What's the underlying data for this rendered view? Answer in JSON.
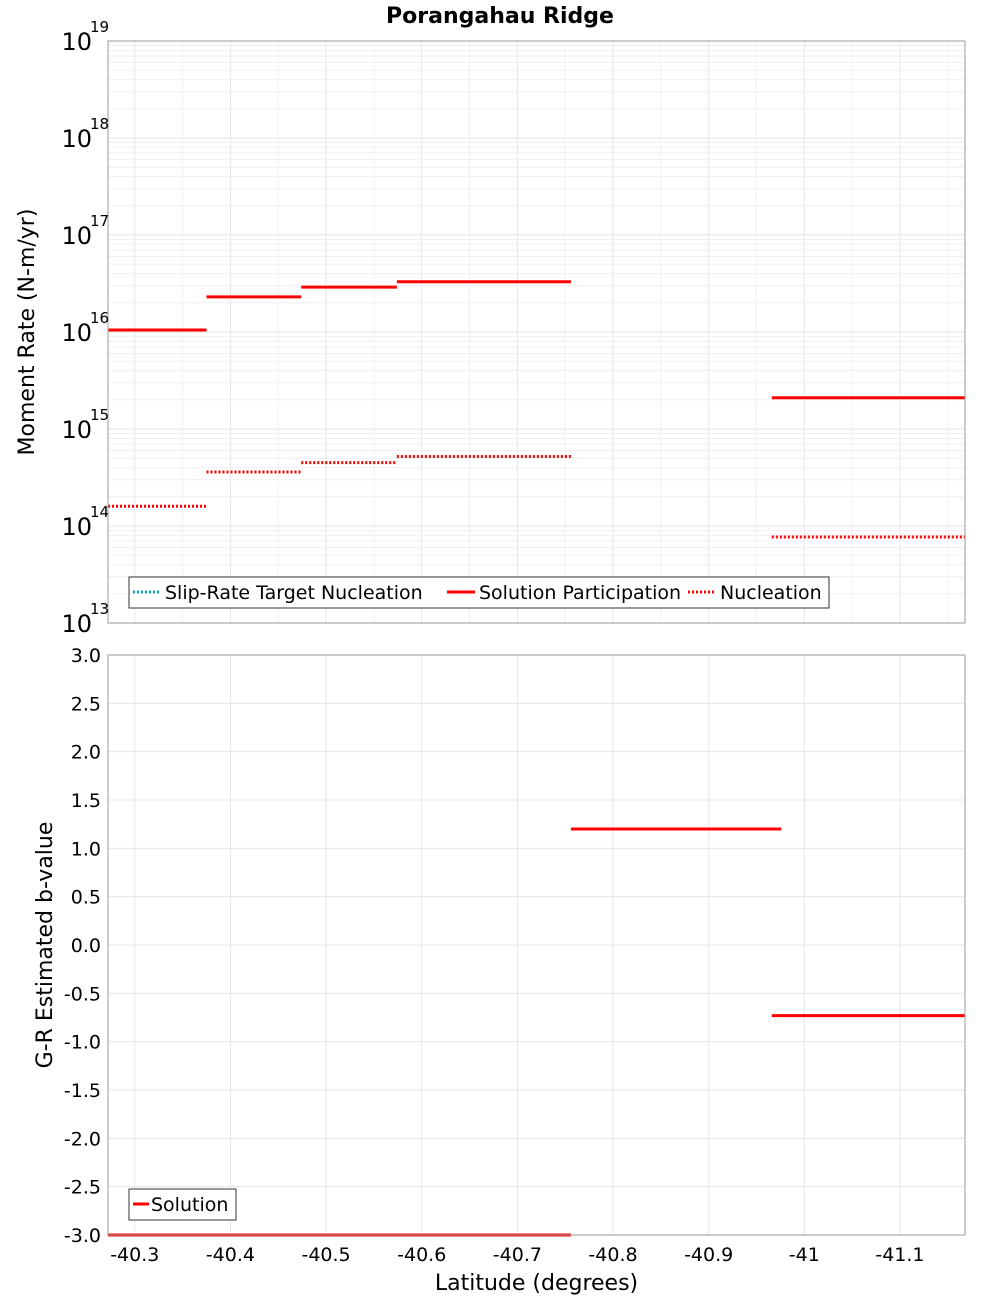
{
  "title": "Porangahau Ridge",
  "colors": {
    "solution": "#ff0000",
    "target": "#00a8c8",
    "grid": "#e6e6e6",
    "frame": "#9a9a9a"
  },
  "chart_data": [
    {
      "type": "line",
      "name": "moment-rate",
      "title": "Porangahau Ridge",
      "ylabel": "Moment Rate (N-m/yr)",
      "xlabel": "",
      "yscale": "log",
      "xlim": [
        -40.272,
        -41.168
      ],
      "ylim_exponent": [
        13,
        19
      ],
      "y_tick_exponents": [
        13,
        14,
        15,
        16,
        17,
        18,
        19
      ],
      "y_tick_base": "10",
      "legend": {
        "position": "bottom-left",
        "entries": [
          {
            "label": "Slip-Rate Target Nucleation",
            "style": "dotted",
            "color": "#00a8c8"
          },
          {
            "label": "Solution Participation",
            "style": "solid",
            "color": "#ff0000"
          },
          {
            "label": "Nucleation",
            "style": "dotted",
            "color": "#ff0000"
          }
        ]
      },
      "series": [
        {
          "name": "Solution Participation",
          "style": "solid",
          "segments": [
            {
              "x0": -40.272,
              "x1": -40.375,
              "y": 1.05e+16
            },
            {
              "x0": -40.375,
              "x1": -40.474,
              "y": 2.3e+16
            },
            {
              "x0": -40.474,
              "x1": -40.574,
              "y": 2.9e+16
            },
            {
              "x0": -40.574,
              "x1": -40.756,
              "y": 3.3e+16
            },
            {
              "x0": -40.966,
              "x1": -41.168,
              "y": 2100000000000000.0
            }
          ]
        },
        {
          "name": "Nucleation",
          "style": "dotted",
          "segments": [
            {
              "x0": -40.272,
              "x1": -40.375,
              "y": 160000000000000.0
            },
            {
              "x0": -40.375,
              "x1": -40.474,
              "y": 360000000000000.0
            },
            {
              "x0": -40.474,
              "x1": -40.574,
              "y": 450000000000000.0
            },
            {
              "x0": -40.574,
              "x1": -40.756,
              "y": 520000000000000.0
            },
            {
              "x0": -40.966,
              "x1": -41.168,
              "y": 77000000000000.0
            }
          ]
        }
      ]
    },
    {
      "type": "line",
      "name": "b-value",
      "ylabel": "G-R Estimated b-value",
      "xlabel": "Latitude (degrees)",
      "xlim": [
        -40.272,
        -41.168
      ],
      "ylim": [
        -3.0,
        3.0
      ],
      "y_ticks": [
        "-3.0",
        "-2.5",
        "-2.0",
        "-1.5",
        "-1.0",
        "-0.5",
        "0.0",
        "0.5",
        "1.0",
        "1.5",
        "2.0",
        "2.5",
        "3.0"
      ],
      "x_ticks": [
        "-40.3",
        "-40.4",
        "-40.5",
        "-40.6",
        "-40.7",
        "-40.8",
        "-40.9",
        "-41",
        "-41.1"
      ],
      "legend": {
        "position": "bottom-left",
        "entries": [
          {
            "label": "Solution",
            "style": "solid",
            "color": "#ff0000"
          }
        ]
      },
      "series": [
        {
          "name": "Solution",
          "style": "solid",
          "segments": [
            {
              "x0": -40.272,
              "x1": -40.756,
              "y": -3.0
            },
            {
              "x0": -40.756,
              "x1": -40.976,
              "y": 1.2
            },
            {
              "x0": -40.966,
              "x1": -41.168,
              "y": -0.73
            }
          ]
        }
      ]
    }
  ]
}
